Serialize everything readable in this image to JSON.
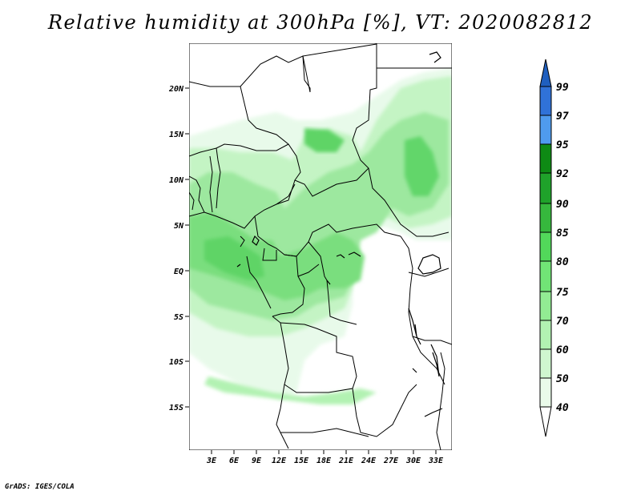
{
  "title": "Relative humidity at 300hPa [%], VT: 2020082812",
  "footer": "GrADS: IGES/COLA",
  "map": {
    "x_ticks": [
      "3E",
      "6E",
      "9E",
      "12E",
      "15E",
      "18E",
      "21E",
      "24E",
      "27E",
      "30E",
      "33E"
    ],
    "y_ticks": [
      "20N",
      "15N",
      "10N",
      "5N",
      "EQ",
      "5S",
      "10S",
      "15S"
    ]
  },
  "colorbar": {
    "labels": [
      "99",
      "97",
      "95",
      "92",
      "90",
      "85",
      "80",
      "75",
      "70",
      "60",
      "50",
      "40"
    ],
    "colors": [
      "#1f5fbf",
      "#3072d8",
      "#4f9bee",
      "#0e8a14",
      "#1fa22a",
      "#36b83d",
      "#52d85a",
      "#71e476",
      "#92ec93",
      "#b2f2b2",
      "#cff7cf",
      "#eafbea",
      "#ffffff"
    ]
  }
}
